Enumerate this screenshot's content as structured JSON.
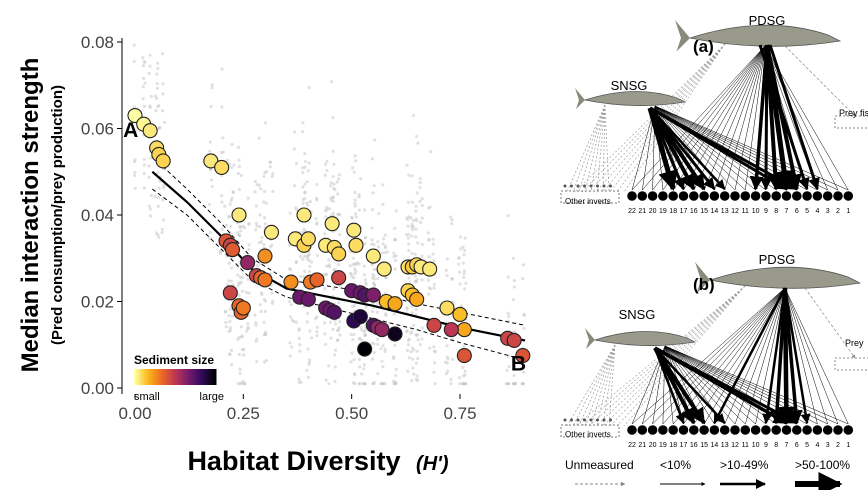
{
  "chart_data": {
    "type": "scatter",
    "xlabel": "Habitat Diversity",
    "xlabel_symbol": "(H')",
    "ylabel": "Median interaction strength",
    "ylabel_sub": "(Pred consumption/prey production)",
    "xlim": [
      -0.03,
      0.93
    ],
    "ylim": [
      0,
      0.08
    ],
    "x_ticks": [
      0.0,
      0.25,
      0.5,
      0.75
    ],
    "x_tick_labels": [
      "0.00",
      "0.25",
      "0.50",
      "0.75"
    ],
    "y_ticks": [
      0.0,
      0.02,
      0.04,
      0.06,
      0.08
    ],
    "y_tick_labels": [
      "0.00",
      "0.02",
      "0.04",
      "0.06",
      "0.08"
    ],
    "grid": false,
    "point_labels": [
      {
        "text": "A",
        "x": -0.01,
        "y": 0.058
      },
      {
        "text": "B",
        "x": 0.885,
        "y": 0.004
      }
    ],
    "legend": {
      "title": "Sediment size",
      "low_label": "small",
      "high_label": "large",
      "colors": [
        "#fcffa4",
        "#fbb61a",
        "#ed6925",
        "#bc3754",
        "#781c6d",
        "#320a5e",
        "#000004"
      ]
    },
    "points": [
      {
        "x": 0.0,
        "y": 0.063,
        "c": 0.0
      },
      {
        "x": 0.02,
        "y": 0.061,
        "c": 0.02
      },
      {
        "x": 0.035,
        "y": 0.0595,
        "c": 0.05
      },
      {
        "x": 0.05,
        "y": 0.0555,
        "c": 0.08
      },
      {
        "x": 0.055,
        "y": 0.054,
        "c": 0.1
      },
      {
        "x": 0.065,
        "y": 0.0525,
        "c": 0.1
      },
      {
        "x": 0.175,
        "y": 0.0525,
        "c": 0.05
      },
      {
        "x": 0.2,
        "y": 0.051,
        "c": 0.08
      },
      {
        "x": 0.24,
        "y": 0.04,
        "c": 0.05
      },
      {
        "x": 0.21,
        "y": 0.034,
        "c": 0.4
      },
      {
        "x": 0.22,
        "y": 0.033,
        "c": 0.45
      },
      {
        "x": 0.225,
        "y": 0.032,
        "c": 0.38
      },
      {
        "x": 0.26,
        "y": 0.029,
        "c": 0.6
      },
      {
        "x": 0.28,
        "y": 0.026,
        "c": 0.45
      },
      {
        "x": 0.29,
        "y": 0.0255,
        "c": 0.35
      },
      {
        "x": 0.3,
        "y": 0.025,
        "c": 0.3
      },
      {
        "x": 0.3,
        "y": 0.0305,
        "c": 0.25
      },
      {
        "x": 0.315,
        "y": 0.036,
        "c": 0.05
      },
      {
        "x": 0.37,
        "y": 0.0345,
        "c": 0.05
      },
      {
        "x": 0.39,
        "y": 0.033,
        "c": 0.1
      },
      {
        "x": 0.39,
        "y": 0.04,
        "c": 0.05
      },
      {
        "x": 0.4,
        "y": 0.0345,
        "c": 0.08
      },
      {
        "x": 0.44,
        "y": 0.033,
        "c": 0.05
      },
      {
        "x": 0.455,
        "y": 0.038,
        "c": 0.05
      },
      {
        "x": 0.46,
        "y": 0.0325,
        "c": 0.08
      },
      {
        "x": 0.47,
        "y": 0.031,
        "c": 0.1
      },
      {
        "x": 0.505,
        "y": 0.0365,
        "c": 0.05
      },
      {
        "x": 0.51,
        "y": 0.033,
        "c": 0.08
      },
      {
        "x": 0.55,
        "y": 0.0305,
        "c": 0.05
      },
      {
        "x": 0.575,
        "y": 0.0275,
        "c": 0.05
      },
      {
        "x": 0.58,
        "y": 0.02,
        "c": 0.15
      },
      {
        "x": 0.6,
        "y": 0.0195,
        "c": 0.2
      },
      {
        "x": 0.63,
        "y": 0.028,
        "c": 0.08
      },
      {
        "x": 0.64,
        "y": 0.028,
        "c": 0.12
      },
      {
        "x": 0.65,
        "y": 0.0285,
        "c": 0.1
      },
      {
        "x": 0.66,
        "y": 0.028,
        "c": 0.05
      },
      {
        "x": 0.68,
        "y": 0.0275,
        "c": 0.05
      },
      {
        "x": 0.63,
        "y": 0.0225,
        "c": 0.1
      },
      {
        "x": 0.64,
        "y": 0.0215,
        "c": 0.15
      },
      {
        "x": 0.65,
        "y": 0.0205,
        "c": 0.2
      },
      {
        "x": 0.72,
        "y": 0.0185,
        "c": 0.08
      },
      {
        "x": 0.75,
        "y": 0.017,
        "c": 0.15
      },
      {
        "x": 0.76,
        "y": 0.0135,
        "c": 0.2
      },
      {
        "x": 0.69,
        "y": 0.0145,
        "c": 0.45
      },
      {
        "x": 0.73,
        "y": 0.0135,
        "c": 0.5
      },
      {
        "x": 0.76,
        "y": 0.0075,
        "c": 0.4
      },
      {
        "x": 0.86,
        "y": 0.0115,
        "c": 0.45
      },
      {
        "x": 0.875,
        "y": 0.011,
        "c": 0.45
      },
      {
        "x": 0.895,
        "y": 0.0075,
        "c": 0.4
      },
      {
        "x": 0.22,
        "y": 0.022,
        "c": 0.45
      },
      {
        "x": 0.24,
        "y": 0.019,
        "c": 0.35
      },
      {
        "x": 0.245,
        "y": 0.0175,
        "c": 0.35
      },
      {
        "x": 0.25,
        "y": 0.0185,
        "c": 0.3
      },
      {
        "x": 0.36,
        "y": 0.0245,
        "c": 0.25
      },
      {
        "x": 0.38,
        "y": 0.021,
        "c": 0.7
      },
      {
        "x": 0.4,
        "y": 0.0205,
        "c": 0.7
      },
      {
        "x": 0.405,
        "y": 0.0245,
        "c": 0.3
      },
      {
        "x": 0.42,
        "y": 0.025,
        "c": 0.35
      },
      {
        "x": 0.44,
        "y": 0.0185,
        "c": 0.7
      },
      {
        "x": 0.45,
        "y": 0.018,
        "c": 0.7
      },
      {
        "x": 0.46,
        "y": 0.0175,
        "c": 0.75
      },
      {
        "x": 0.47,
        "y": 0.0255,
        "c": 0.45
      },
      {
        "x": 0.5,
        "y": 0.0225,
        "c": 0.7
      },
      {
        "x": 0.52,
        "y": 0.022,
        "c": 0.7
      },
      {
        "x": 0.53,
        "y": 0.0215,
        "c": 0.75
      },
      {
        "x": 0.55,
        "y": 0.0215,
        "c": 0.65
      },
      {
        "x": 0.505,
        "y": 0.0155,
        "c": 0.85
      },
      {
        "x": 0.52,
        "y": 0.0165,
        "c": 0.9
      },
      {
        "x": 0.55,
        "y": 0.0145,
        "c": 0.75
      },
      {
        "x": 0.56,
        "y": 0.014,
        "c": 0.6
      },
      {
        "x": 0.57,
        "y": 0.0135,
        "c": 0.6
      },
      {
        "x": 0.6,
        "y": 0.0125,
        "c": 0.95
      },
      {
        "x": 0.53,
        "y": 0.009,
        "c": 1.0
      }
    ],
    "fit_line": {
      "x": [
        0.04,
        0.12,
        0.2,
        0.27,
        0.35,
        0.45,
        0.55,
        0.65,
        0.75,
        0.9
      ],
      "y": [
        0.05,
        0.043,
        0.035,
        0.0275,
        0.023,
        0.021,
        0.019,
        0.0165,
        0.014,
        0.011
      ]
    },
    "ci_upper": {
      "x": [
        0.04,
        0.12,
        0.2,
        0.27,
        0.35,
        0.45,
        0.55,
        0.65,
        0.75,
        0.9
      ],
      "y": [
        0.0535,
        0.046,
        0.038,
        0.03,
        0.025,
        0.0235,
        0.022,
        0.0195,
        0.0175,
        0.0145
      ]
    },
    "ci_lower": {
      "x": [
        0.04,
        0.12,
        0.2,
        0.27,
        0.35,
        0.45,
        0.55,
        0.65,
        0.75,
        0.9
      ],
      "y": [
        0.046,
        0.04,
        0.032,
        0.025,
        0.021,
        0.0185,
        0.016,
        0.0135,
        0.0105,
        0.0065
      ]
    }
  },
  "food_web": {
    "panel_a_label": "(a)",
    "panel_b_label": "(b)",
    "predator_1": "PDSG",
    "predator_2": "SNSG",
    "prey_fish_label": "Prey fis",
    "prey_fish_label_b": "Prey",
    "other_inverts_label": "Other inverts",
    "node_numbers": [
      "22",
      "21",
      "20",
      "19",
      "18",
      "17",
      "16",
      "15",
      "14",
      "13",
      "12",
      "11",
      "10",
      "9",
      "8",
      "7",
      "6",
      "5",
      "4",
      "3",
      "2",
      "1"
    ],
    "legend_items": [
      {
        "label": "Unmeasured",
        "style": "dashed"
      },
      {
        "label": "<10%",
        "style": "thin"
      },
      {
        "label": ">10-49%",
        "style": "medium"
      },
      {
        "label": ">50-100%",
        "style": "thick"
      }
    ]
  }
}
